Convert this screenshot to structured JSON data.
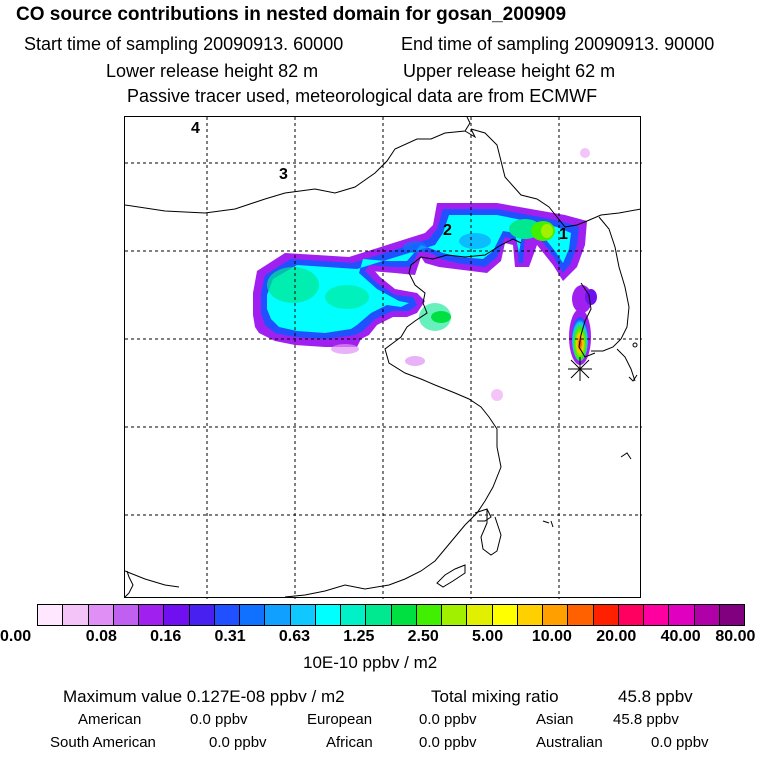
{
  "header": {
    "title": "CO  source contributions in nested domain for gosan_200909",
    "start_time": "Start time of sampling 20090913. 60000",
    "end_time": "End time of sampling 20090913. 90000",
    "lower_height": "Lower release height   82 m",
    "upper_height": "Upper release height   62 m",
    "tracer_note": "Passive tracer used, meteorological data are from ECMWF"
  },
  "map": {
    "labels": [
      "4",
      "3",
      "2",
      "1"
    ],
    "receptor": "Gosan station (asterisk)"
  },
  "colorbar": {
    "colors": [
      "#ffe8ff",
      "#f4c4f8",
      "#e090f4",
      "#c060f0",
      "#a020f0",
      "#7010f0",
      "#4820f0",
      "#2050ff",
      "#1070ff",
      "#10a0ff",
      "#10c8ff",
      "#00ffff",
      "#00f0c8",
      "#00e890",
      "#00e040",
      "#40f000",
      "#a0f000",
      "#e0f000",
      "#ffff00",
      "#ffd000",
      "#ffa000",
      "#ff6000",
      "#ff2000",
      "#ff0060",
      "#ff00a0",
      "#e000c0",
      "#b000a8",
      "#800080"
    ],
    "ticks": [
      "0.00",
      "0.08",
      "0.16",
      "0.31",
      "0.63",
      "1.25",
      "2.50",
      "5.00",
      "10.00",
      "20.00",
      "40.00",
      "80.00"
    ],
    "unit": "10E-10 ppbv / m2"
  },
  "summary": {
    "max_label": "Maximum value  0.127E-08 ppbv / m2",
    "total_label": "Total mixing ratio",
    "total_value": "45.8 ppbv",
    "regions": [
      {
        "name": "American",
        "value": "0.0 ppbv"
      },
      {
        "name": "European",
        "value": "0.0 ppbv"
      },
      {
        "name": "Asian",
        "value": "45.8 ppbv"
      },
      {
        "name": "South American",
        "value": "0.0 ppbv"
      },
      {
        "name": "African",
        "value": "0.0 ppbv"
      },
      {
        "name": "Australian",
        "value": "0.0 ppbv"
      }
    ]
  }
}
